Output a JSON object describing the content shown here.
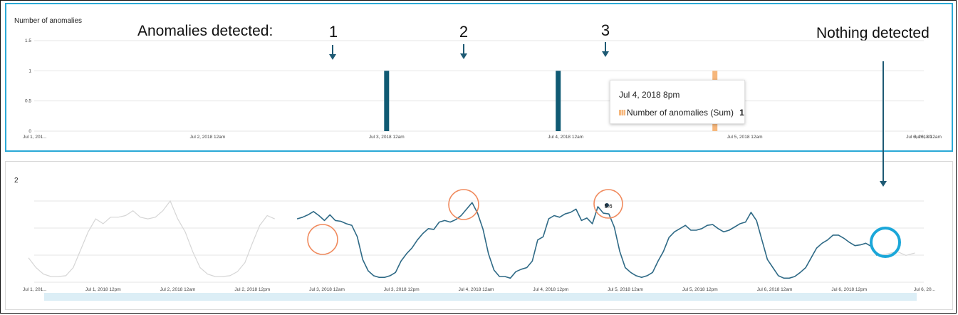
{
  "annotations": {
    "heading": "Anomalies detected:",
    "numbers": [
      "1",
      "2",
      "3"
    ],
    "nothing": "Nothing detected"
  },
  "tooltip": {
    "date": "Jul 4, 2018 8pm",
    "series": "Number of anomalies (Sum)",
    "value": "1"
  },
  "colors": {
    "anomaly_bar": "#0f5a73",
    "highlight_bar": "#f6b77c",
    "line": "#2f6a86",
    "context_line": "#d6d6d6",
    "circle_red": "#f08a5d",
    "circle_blue": "#1ba7d9",
    "arrow": "#1e5a74"
  },
  "chart_data": [
    {
      "type": "bar",
      "ylabel": "Number of anomalies",
      "ylim": [
        0,
        1.5
      ],
      "yticks": [
        "0",
        "0.5",
        "1",
        "1.5"
      ],
      "xticks": [
        "Jul 1, 201...",
        "Jul 2, 2018 12am",
        "Jul 3, 2018 12am",
        "Jul 4, 2018 12am",
        "Jul 5, 2018 12am",
        "Jul 6, 2018 12am",
        "Jul 6, 20..."
      ],
      "bars": [
        {
          "x": "Jul 3, 2018 ~0am",
          "t": 48,
          "value": 1,
          "highlight": false
        },
        {
          "x": "Jul 3, 2018 ~11pm",
          "t": 71,
          "value": 1,
          "highlight": false
        },
        {
          "x": "Jul 4, 2018 8pm",
          "t": 92,
          "value": 1,
          "highlight": true
        }
      ],
      "grid": true
    },
    {
      "type": "line",
      "title": "2",
      "xticks": [
        "Jul 1, 201...",
        "Jul 1, 2018 12pm",
        "Jul 2, 2018 12am",
        "Jul 2, 2018 12pm",
        "Jul 3, 2018 12am",
        "Jul 3, 2018 12pm",
        "Jul 4, 2018 12am",
        "Jul 4, 2018 12pm",
        "Jul 5, 2018 12am",
        "Jul 5, 2018 12pm",
        "Jul 6, 2018 12am",
        "Jul 6, 2018 12pm",
        "Jul 6, 20..."
      ],
      "point_label": "5.6",
      "ylim": [
        0,
        1
      ],
      "grid": true,
      "context_series": [
        0.3,
        0.18,
        0.1,
        0.07,
        0.07,
        0.08,
        0.18,
        0.4,
        0.62,
        0.78,
        0.72,
        0.8,
        0.8,
        0.82,
        0.88,
        0.8,
        0.78,
        0.8,
        0.88,
        1.0,
        0.78,
        0.62,
        0.38,
        0.18,
        0.1,
        0.07,
        0.07,
        0.08,
        0.13,
        0.24,
        0.48,
        0.7,
        0.82,
        0.78
      ],
      "series": [
        {
          "t_start": 36,
          "values": [
            0.78,
            0.8,
            0.83,
            0.87,
            0.82,
            0.76,
            0.83,
            0.76,
            0.75,
            0.72,
            0.7,
            0.56,
            0.28,
            0.14,
            0.08,
            0.06,
            0.06,
            0.08,
            0.12,
            0.26,
            0.35,
            0.42,
            0.52,
            0.6,
            0.66,
            0.65,
            0.74,
            0.76,
            0.74,
            0.77,
            0.82,
            0.9,
            0.98,
            0.85,
            0.65,
            0.35,
            0.15,
            0.07,
            0.07,
            0.05,
            0.13,
            0.16,
            0.18,
            0.26,
            0.52,
            0.56,
            0.78,
            0.82,
            0.8,
            0.84,
            0.86,
            0.9,
            0.76,
            0.79,
            0.72,
            0.93,
            0.85,
            0.84,
            0.68,
            0.38,
            0.18,
            0.12,
            0.08,
            0.06,
            0.08,
            0.12,
            0.26,
            0.38,
            0.55,
            0.62,
            0.66,
            0.7,
            0.64,
            0.64,
            0.66,
            0.7,
            0.71,
            0.66,
            0.62,
            0.64,
            0.68,
            0.72,
            0.74,
            0.86,
            0.76,
            0.52,
            0.28,
            0.18,
            0.08,
            0.05,
            0.05,
            0.07,
            0.12,
            0.18,
            0.3,
            0.42,
            0.48,
            0.52,
            0.58,
            0.58,
            0.54,
            0.49,
            0.45,
            0.46,
            0.48,
            0.44,
            0.33
          ]
        }
      ],
      "anomaly_points_t": [
        47,
        70,
        91
      ]
    }
  ]
}
